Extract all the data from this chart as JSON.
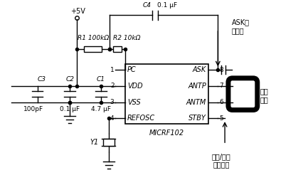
{
  "bg_color": "#ffffff",
  "line_color": "#000000",
  "chip_label": "MICRF102",
  "chip_pins_left": [
    "PC",
    "VDD",
    "VSS",
    "REFOSC"
  ],
  "chip_pins_right": [
    "ASK",
    "ANTP",
    "ANTM",
    "STBY"
  ],
  "chip_pin_numbers_left": [
    "1",
    "2",
    "3",
    "4"
  ],
  "chip_pin_numbers_right": [
    "8",
    "7",
    "6",
    "5"
  ],
  "vcc_label": "+5V",
  "R1_label": "R1 100kΩ",
  "R2_label": "R2 10kΩ",
  "C4_label": "C4",
  "C4_val": "0.1 μF",
  "C1_label": "C1",
  "C1_val": "4.7 μF",
  "C2_label": "C2",
  "C2_val": "0.1 μF",
  "C3_label": "C3",
  "C3_val": "100pF",
  "Y1_label": "Y1",
  "ASK_line1": "ASK数",
  "ASK_line2": "据输入",
  "ant_label1": "印制",
  "ant_label2": "天线",
  "stby_line1": "发射/待机",
  "stby_line2": "模式控制"
}
